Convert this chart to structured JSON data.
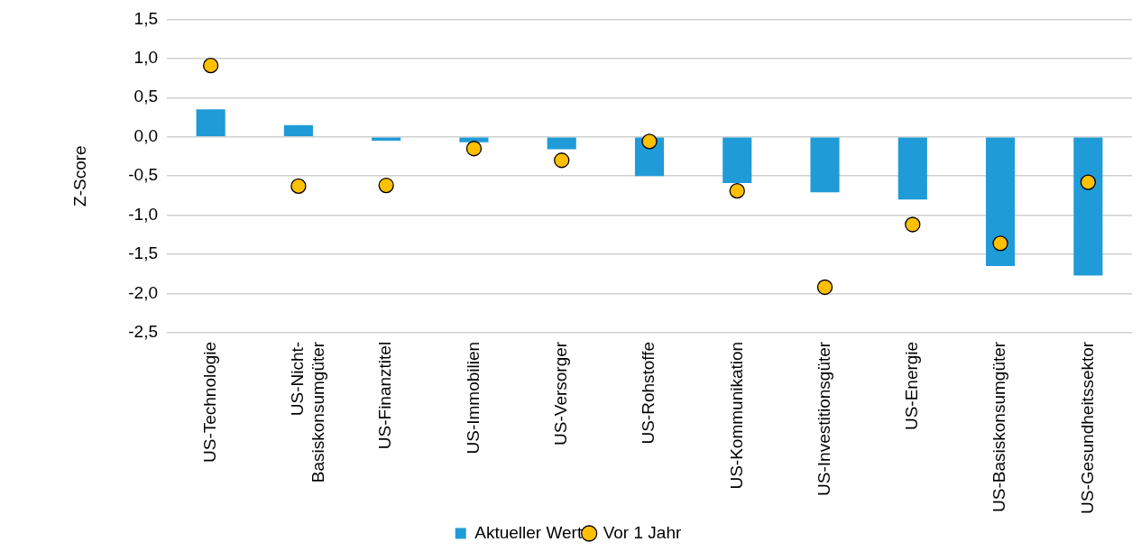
{
  "chart_data": {
    "type": "bar",
    "ylabel": "Z-Score",
    "categories": [
      "US-Technologie",
      "US-Nicht-Basiskonsumgüter",
      "US-Finanztitel",
      "US-Immobilien",
      "US-Versorger",
      "US-Rohstoffe",
      "US-Kommunikation",
      "US-Investitionsgüter",
      "US-Energie",
      "US-Basiskonsumgüter",
      "US-Gesundheitssektor"
    ],
    "series": [
      {
        "name": "Aktueller Wert",
        "type": "bar",
        "color": "#1f9bd7",
        "values": [
          0.35,
          0.15,
          -0.05,
          -0.07,
          -0.16,
          -0.5,
          -0.59,
          -0.71,
          -0.8,
          -1.65,
          -1.77
        ]
      },
      {
        "name": "Vor 1 Jahr",
        "type": "scatter",
        "color": "#ffc000",
        "marker": "circle",
        "values": [
          0.91,
          -0.63,
          -0.62,
          -0.15,
          -0.3,
          -0.06,
          -0.69,
          -1.92,
          -1.12,
          -1.36,
          -0.58
        ]
      }
    ],
    "ylim": [
      -2.5,
      1.5
    ],
    "yticks": [
      {
        "value": 1.5,
        "label": "1,5"
      },
      {
        "value": 1.0,
        "label": "1,0"
      },
      {
        "value": 0.5,
        "label": "0,5"
      },
      {
        "value": 0,
        "label": "0,0"
      },
      {
        "value": -0.5,
        "label": "-0,5"
      },
      {
        "value": -1.0,
        "label": "-1,0"
      },
      {
        "value": -1.5,
        "label": "-1,5"
      },
      {
        "value": -2.0,
        "label": "-2,0"
      },
      {
        "value": -2.5,
        "label": "-2,5"
      }
    ],
    "grid": "y",
    "legend": "bottom"
  }
}
